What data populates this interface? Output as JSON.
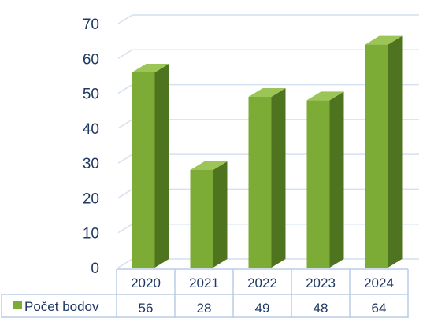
{
  "chart_data": {
    "type": "bar",
    "title": "",
    "xlabel": "",
    "ylabel": "",
    "categories": [
      "2020",
      "2021",
      "2022",
      "2023",
      "2024"
    ],
    "series": [
      {
        "name": "Počet bodov",
        "values": [
          56,
          28,
          49,
          48,
          64
        ]
      }
    ],
    "ylim": [
      0,
      70
    ],
    "yticks": [
      "0",
      "10",
      "20",
      "30",
      "40",
      "50",
      "60",
      "70"
    ],
    "grid": true,
    "data_table": true,
    "legend_position": "data-table",
    "colors": {
      "bar_front": "#7cac35",
      "bar_side": "#4f7420",
      "bar_top": "#9cc558",
      "grid": "#d4e1f0",
      "table_border": "#b9cde5",
      "text": "#1f3864",
      "legend_key": "#7cac35"
    }
  }
}
